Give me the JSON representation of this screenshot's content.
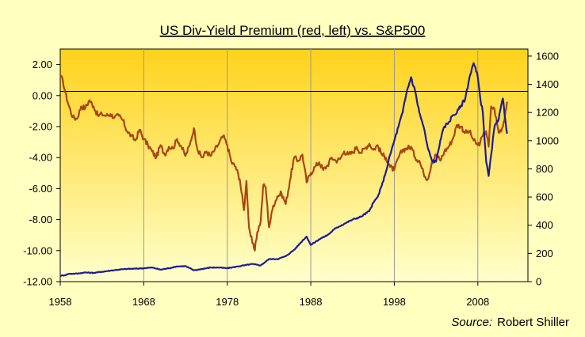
{
  "chart_data": {
    "type": "line",
    "title": "US Div-Yield Premium (red, left) vs. S&P500",
    "source_label": "Source:",
    "source_value": "Robert Shiller",
    "x_ticks": [
      "1958",
      "1968",
      "1978",
      "1988",
      "1998",
      "2008"
    ],
    "xlim": [
      1958,
      2014
    ],
    "y_left": {
      "lim": [
        -12,
        3
      ],
      "ticks": [
        "2.00",
        "0.00",
        "-2.00",
        "-4.00",
        "-6.00",
        "-8.00",
        "-10.00",
        "-12.00"
      ]
    },
    "y_right": {
      "lim": [
        0,
        1650
      ],
      "ticks": [
        "1600",
        "1400",
        "1200",
        "1000",
        "800",
        "600",
        "400",
        "200",
        "0"
      ]
    },
    "grid": true,
    "series": [
      {
        "axis": "left",
        "color": "#A8460F",
        "x": [
          1958.0,
          1958.3,
          1958.6,
          1959.0,
          1959.5,
          1960.0,
          1960.5,
          1961.0,
          1961.5,
          1962.0,
          1962.5,
          1963.0,
          1963.5,
          1964.0,
          1964.5,
          1965.0,
          1965.5,
          1966.0,
          1966.5,
          1967.0,
          1967.5,
          1968.0,
          1968.5,
          1969.0,
          1969.5,
          1970.0,
          1970.5,
          1971.0,
          1971.5,
          1972.0,
          1972.5,
          1973.0,
          1973.5,
          1974.0,
          1974.5,
          1975.0,
          1975.5,
          1976.0,
          1976.5,
          1977.0,
          1977.5,
          1978.0,
          1978.5,
          1979.0,
          1979.5,
          1980.0,
          1980.3,
          1980.6,
          1981.0,
          1981.3,
          1981.6,
          1982.0,
          1982.3,
          1982.6,
          1983.0,
          1983.5,
          1984.0,
          1984.5,
          1985.0,
          1985.5,
          1986.0,
          1986.5,
          1987.0,
          1987.5,
          1988.0,
          1988.5,
          1989.0,
          1989.5,
          1990.0,
          1990.5,
          1991.0,
          1991.5,
          1992.0,
          1992.5,
          1993.0,
          1993.5,
          1994.0,
          1994.5,
          1995.0,
          1995.5,
          1996.0,
          1996.5,
          1997.0,
          1997.5,
          1998.0,
          1998.5,
          1999.0,
          1999.5,
          2000.0,
          2000.5,
          2001.0,
          2001.5,
          2002.0,
          2002.5,
          2003.0,
          2003.5,
          2004.0,
          2004.5,
          2005.0,
          2005.5,
          2006.0,
          2006.5,
          2007.0,
          2007.5,
          2008.0,
          2008.3,
          2008.6,
          2009.0,
          2009.3,
          2009.6,
          2010.0,
          2010.5,
          2011.0,
          2011.5
        ],
        "values": [
          1.2,
          1.0,
          0.2,
          -0.6,
          -1.4,
          -1.5,
          -0.7,
          -0.8,
          -0.3,
          -0.7,
          -1.3,
          -1.2,
          -1.3,
          -1.2,
          -1.4,
          -1.3,
          -1.6,
          -2.3,
          -2.6,
          -2.9,
          -2.2,
          -2.8,
          -3.2,
          -3.6,
          -4.0,
          -3.2,
          -3.8,
          -3.3,
          -3.4,
          -2.8,
          -3.3,
          -3.9,
          -3.2,
          -2.1,
          -3.6,
          -4.0,
          -3.6,
          -3.9,
          -3.5,
          -3.1,
          -2.6,
          -3.2,
          -4.3,
          -4.6,
          -5.4,
          -7.4,
          -5.5,
          -8.5,
          -9.5,
          -10.0,
          -8.8,
          -8.1,
          -5.8,
          -5.9,
          -8.5,
          -7.1,
          -6.5,
          -6.3,
          -7.0,
          -5.5,
          -4.0,
          -4.2,
          -3.8,
          -5.6,
          -5.0,
          -4.6,
          -4.3,
          -4.8,
          -4.5,
          -4.0,
          -4.2,
          -4.1,
          -3.6,
          -3.8,
          -3.7,
          -3.3,
          -3.7,
          -3.4,
          -3.1,
          -3.5,
          -3.2,
          -3.8,
          -4.0,
          -4.6,
          -4.8,
          -4.0,
          -3.5,
          -3.4,
          -3.3,
          -4.0,
          -4.2,
          -5.0,
          -5.4,
          -4.3,
          -3.8,
          -4.2,
          -3.6,
          -3.3,
          -2.8,
          -1.9,
          -2.0,
          -2.4,
          -2.3,
          -2.9,
          -3.2,
          -3.0,
          -2.6,
          -2.3,
          -3.3,
          -0.7,
          -0.9,
          -2.4,
          -2.0,
          -0.4
        ]
      },
      {
        "axis": "right",
        "color": "#1C1C96",
        "x": [
          1958.0,
          1958.5,
          1959.0,
          1960.0,
          1961.0,
          1962.0,
          1963.0,
          1964.0,
          1965.0,
          1966.0,
          1967.0,
          1968.0,
          1969.0,
          1970.0,
          1971.0,
          1972.0,
          1973.0,
          1974.0,
          1975.0,
          1976.0,
          1977.0,
          1978.0,
          1979.0,
          1980.0,
          1981.0,
          1982.0,
          1983.0,
          1984.0,
          1985.0,
          1986.0,
          1987.0,
          1987.5,
          1988.0,
          1989.0,
          1990.0,
          1991.0,
          1992.0,
          1993.0,
          1994.0,
          1995.0,
          1995.5,
          1996.0,
          1996.5,
          1997.0,
          1997.5,
          1998.0,
          1998.5,
          1999.0,
          1999.5,
          2000.0,
          2000.5,
          2001.0,
          2001.5,
          2002.0,
          2002.5,
          2003.0,
          2003.5,
          2004.0,
          2004.5,
          2005.0,
          2005.5,
          2006.0,
          2006.5,
          2007.0,
          2007.5,
          2008.0,
          2008.3,
          2008.6,
          2009.0,
          2009.3,
          2009.6,
          2010.0,
          2010.5,
          2011.0,
          2011.5
        ],
        "values": [
          42,
          45,
          55,
          57,
          65,
          62,
          70,
          78,
          85,
          90,
          92,
          95,
          100,
          85,
          95,
          108,
          110,
          80,
          90,
          100,
          100,
          95,
          105,
          115,
          125,
          115,
          160,
          160,
          180,
          225,
          290,
          320,
          260,
          300,
          330,
          380,
          410,
          440,
          460,
          500,
          560,
          600,
          680,
          780,
          900,
          1000,
          1100,
          1200,
          1350,
          1450,
          1350,
          1200,
          1100,
          950,
          860,
          850,
          1000,
          1100,
          1130,
          1180,
          1200,
          1250,
          1300,
          1450,
          1550,
          1450,
          1300,
          1200,
          850,
          750,
          900,
          1100,
          1150,
          1300,
          1050
        ]
      }
    ]
  }
}
